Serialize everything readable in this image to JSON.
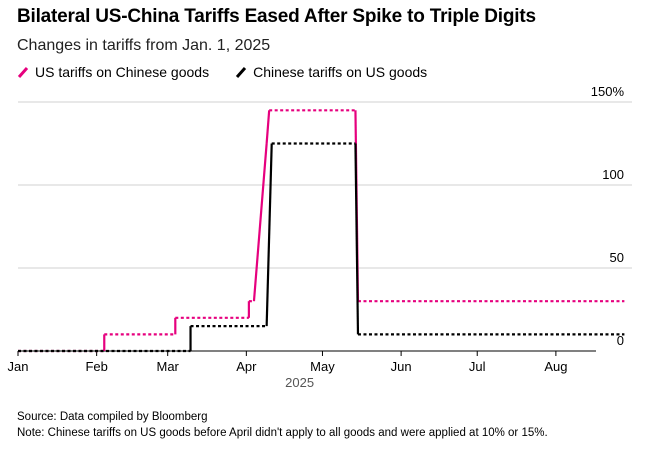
{
  "chart_data": {
    "type": "line",
    "title": "Bilateral US-China Tariffs Eased After Spike to Triple Digits",
    "subtitle": "Changes in tariffs from Jan. 1, 2025",
    "x_ticks": [
      "Jan",
      "Feb",
      "Mar",
      "Apr",
      "May",
      "Jun",
      "Jul",
      "Aug"
    ],
    "x_year": "2025",
    "y_ticks": [
      "0",
      "50",
      "100",
      "150%"
    ],
    "y_tick_values": [
      0,
      50,
      100,
      150
    ],
    "ylim": [
      0,
      150
    ],
    "xlim": [
      "2025-01-01",
      "2025-08-31"
    ],
    "grid": "horizontal",
    "legend_position": "top-left",
    "series": [
      {
        "name": "US tariffs on Chinese goods",
        "color": "#e6007e",
        "points": [
          [
            "2025-01-01",
            0
          ],
          [
            "2025-02-04",
            0
          ],
          [
            "2025-02-04",
            10
          ],
          [
            "2025-03-04",
            10
          ],
          [
            "2025-03-04",
            20
          ],
          [
            "2025-04-02",
            20
          ],
          [
            "2025-04-02",
            30
          ],
          [
            "2025-04-04",
            30
          ],
          [
            "2025-04-09",
            125
          ],
          [
            "2025-04-10",
            145
          ],
          [
            "2025-05-14",
            145
          ],
          [
            "2025-05-15",
            30
          ],
          [
            "2025-08-28",
            30
          ]
        ]
      },
      {
        "name": "Chinese tariffs on US goods",
        "color": "#000000",
        "points": [
          [
            "2025-01-01",
            0
          ],
          [
            "2025-03-10",
            0
          ],
          [
            "2025-03-10",
            15
          ],
          [
            "2025-04-09",
            15
          ],
          [
            "2025-04-11",
            125
          ],
          [
            "2025-05-14",
            125
          ],
          [
            "2025-05-15",
            10
          ],
          [
            "2025-08-28",
            10
          ]
        ]
      }
    ]
  },
  "footer": {
    "source": "Source: Data compiled by Bloomberg",
    "note": "Note: Chinese tariffs on US goods before April didn't apply to all goods and were applied at 10% or 15%."
  }
}
